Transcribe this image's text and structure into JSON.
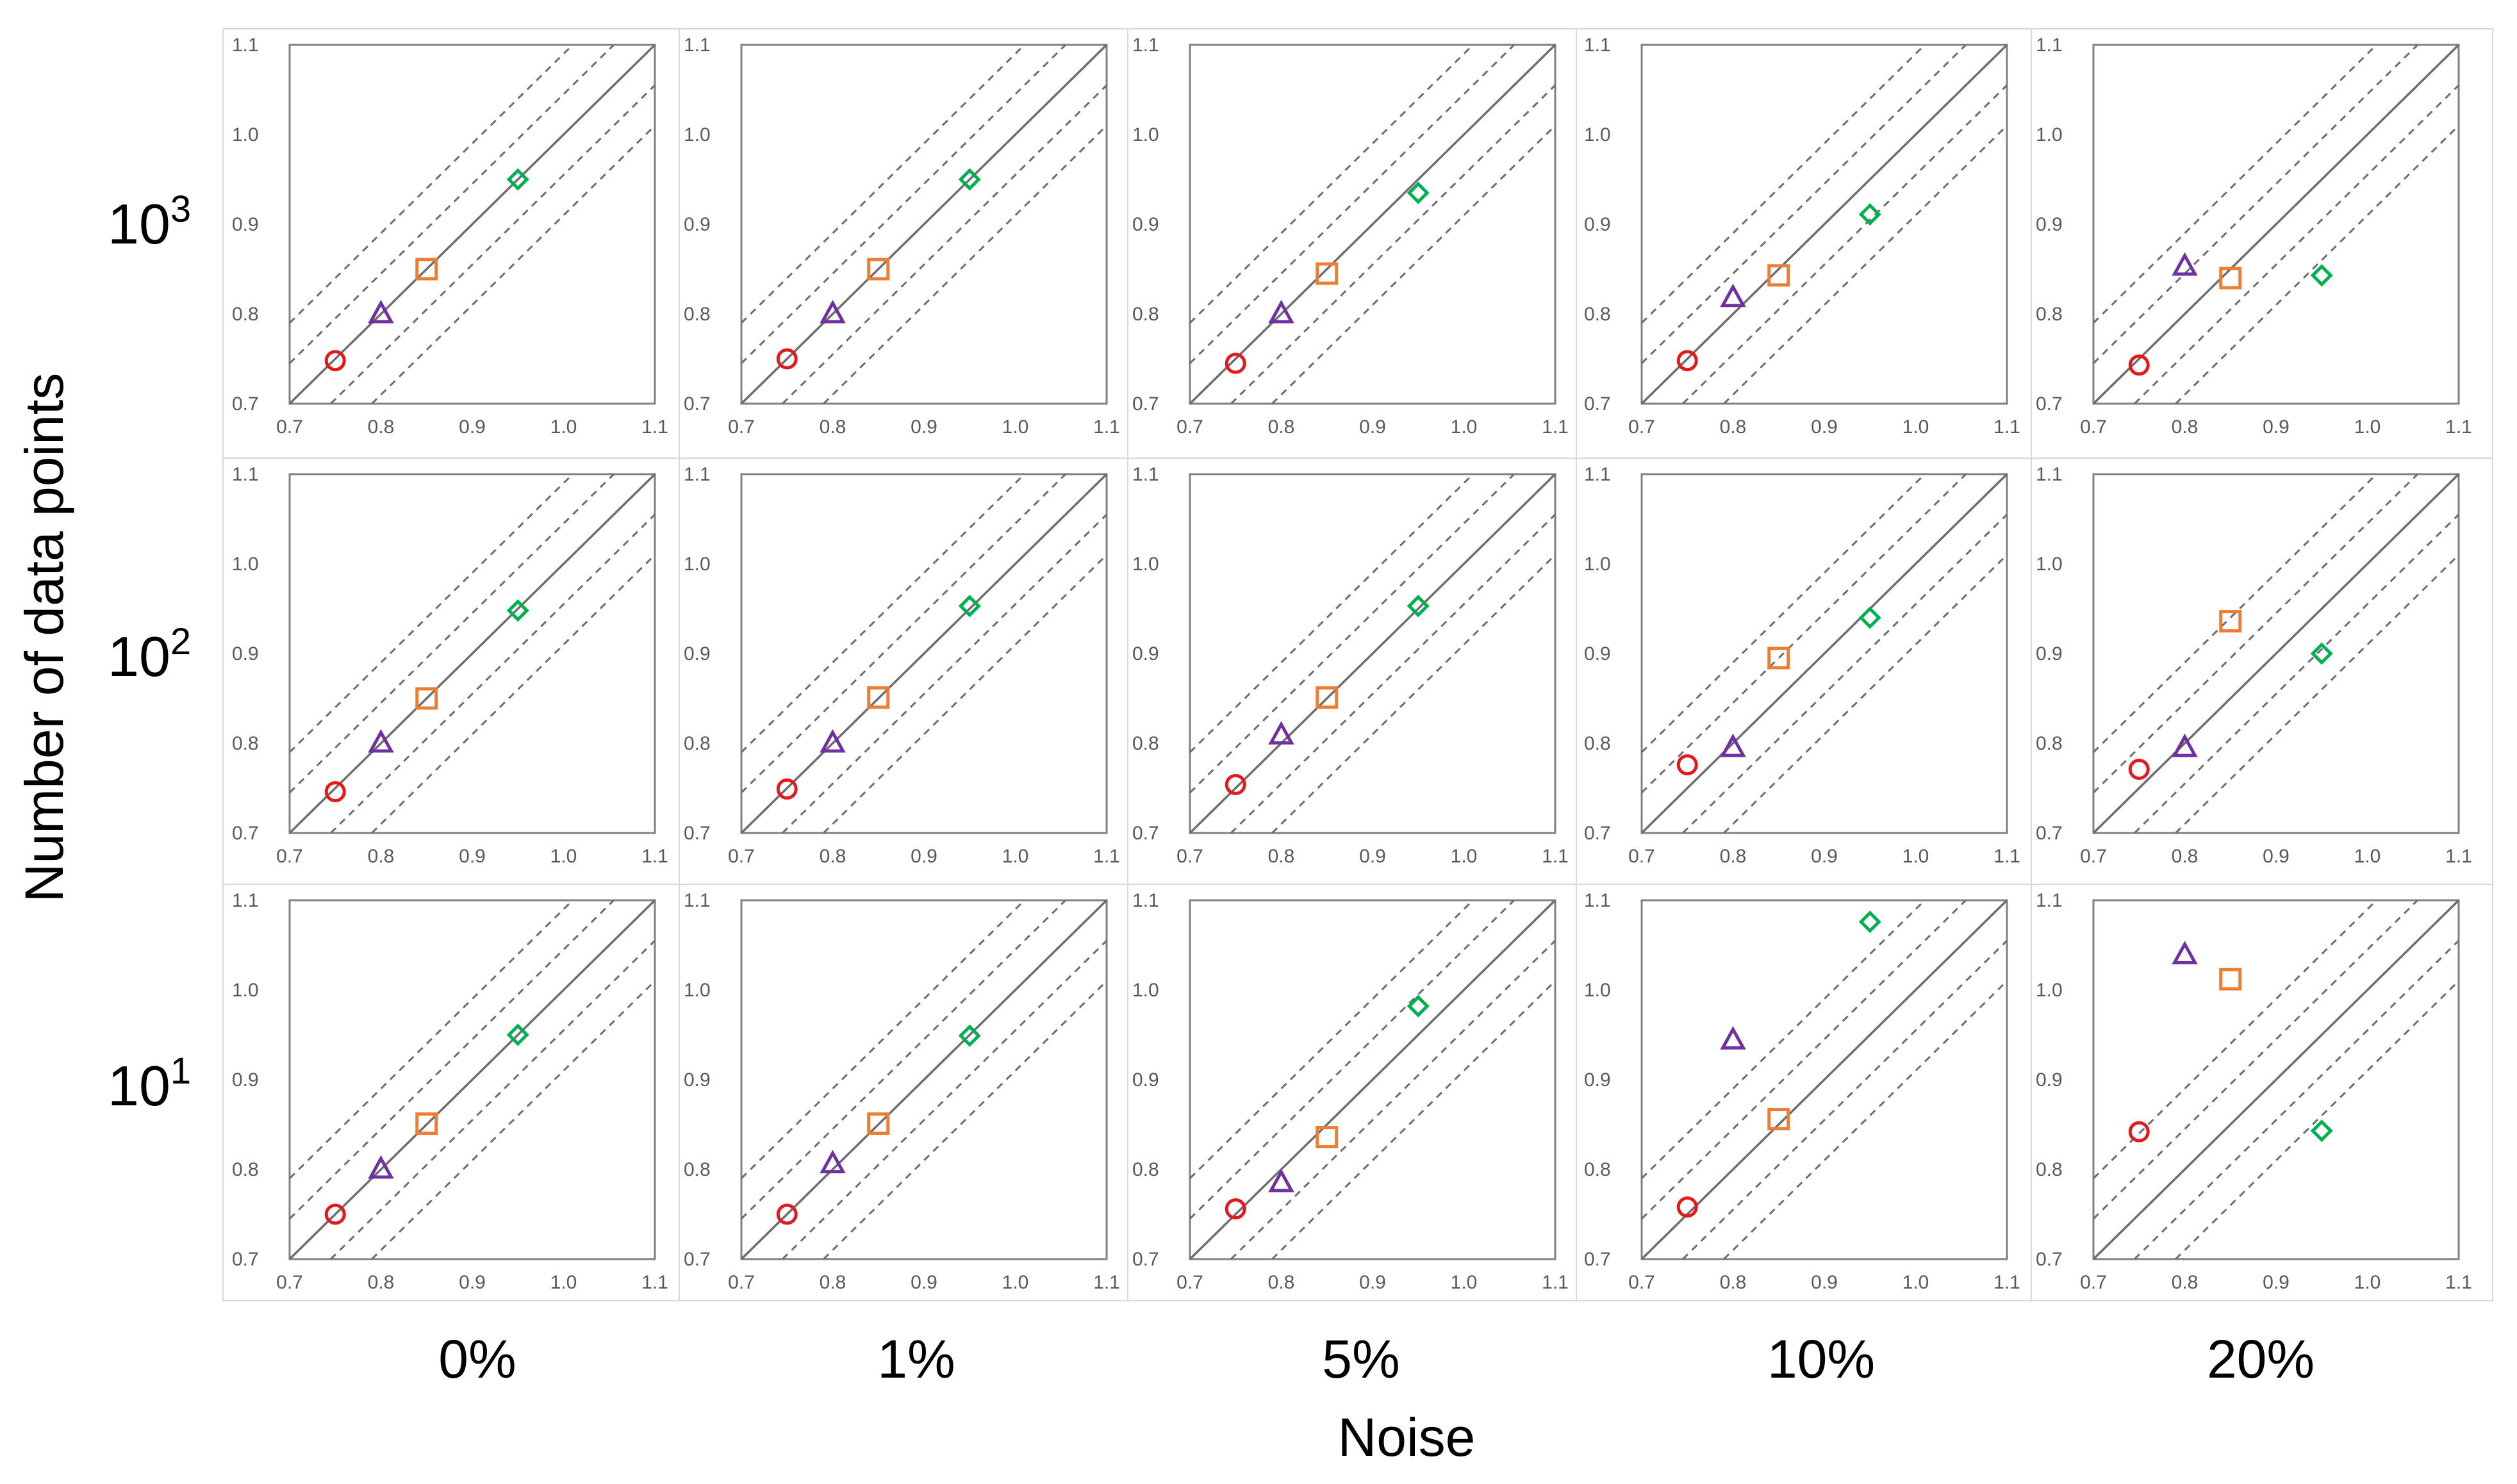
{
  "chart_data": {
    "type": "scatter",
    "layout": "grid",
    "grid_rows": 3,
    "grid_cols": 5,
    "ylabel": "Number of data points",
    "xlabel": "Noise",
    "row_labels": [
      {
        "base": "10",
        "exp": "3"
      },
      {
        "base": "10",
        "exp": "2"
      },
      {
        "base": "10",
        "exp": "1"
      }
    ],
    "col_labels": [
      "0%",
      "1%",
      "5%",
      "10%",
      "20%"
    ],
    "axis": {
      "xlim": [
        0.7,
        1.1
      ],
      "ylim": [
        0.7,
        1.1
      ],
      "xticks": [
        "0.7",
        "0.8",
        "0.9",
        "1.0",
        "1.1"
      ],
      "yticks": [
        "0.7",
        "0.8",
        "0.9",
        "1.0",
        "1.1"
      ],
      "reference_line": "y = x",
      "dashed_bands": [
        -0.09,
        -0.045,
        0.045,
        0.09
      ]
    },
    "series": [
      {
        "name": "circle",
        "marker": "circle",
        "color": "#e31a1c",
        "x": 0.75
      },
      {
        "name": "triangle",
        "marker": "triangle",
        "color": "#7030a0",
        "x": 0.8
      },
      {
        "name": "square",
        "marker": "square",
        "color": "#ed7d31",
        "x": 0.85
      },
      {
        "name": "diamond",
        "marker": "diamond",
        "color": "#00b050",
        "x": 0.95
      }
    ],
    "panels": [
      [
        {
          "y": [
            0.748,
            0.8,
            0.85,
            0.95
          ]
        },
        {
          "y": [
            0.75,
            0.8,
            0.85,
            0.95
          ]
        },
        {
          "y": [
            0.745,
            0.8,
            0.845,
            0.935
          ]
        },
        {
          "y": [
            0.748,
            0.818,
            0.843,
            0.911
          ]
        },
        {
          "y": [
            0.743,
            0.853,
            0.84,
            0.843
          ]
        }
      ],
      [
        {
          "y": [
            0.746,
            0.8,
            0.85,
            0.948
          ]
        },
        {
          "y": [
            0.749,
            0.8,
            0.851,
            0.953
          ]
        },
        {
          "y": [
            0.754,
            0.809,
            0.851,
            0.953
          ]
        },
        {
          "y": [
            0.776,
            0.795,
            0.895,
            0.94
          ]
        },
        {
          "y": [
            0.771,
            0.795,
            0.936,
            0.9
          ]
        }
      ],
      [
        {
          "y": [
            0.75,
            0.8,
            0.851,
            0.95
          ]
        },
        {
          "y": [
            0.75,
            0.806,
            0.851,
            0.949
          ]
        },
        {
          "y": [
            0.756,
            0.785,
            0.836,
            0.982
          ]
        },
        {
          "y": [
            0.758,
            0.944,
            0.856,
            1.076
          ]
        },
        {
          "y": [
            0.842,
            1.039,
            1.012,
            0.843
          ]
        }
      ]
    ]
  }
}
